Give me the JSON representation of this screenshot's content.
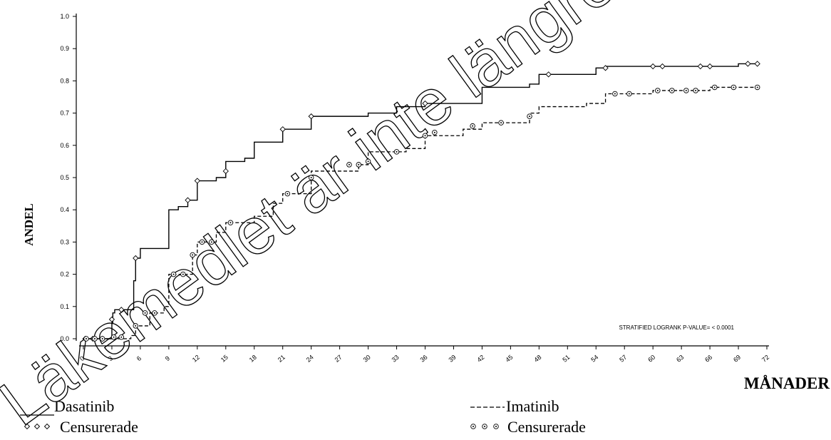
{
  "watermark": "Läkemedlet är inte längre godkänt",
  "chart_data": {
    "type": "line",
    "title": "",
    "xlabel": "MÅNADER",
    "ylabel": "ANDEL",
    "xlim": [
      0,
      72
    ],
    "ylim": [
      0,
      1.0
    ],
    "x_ticks": [
      "0",
      "3",
      "6",
      "9",
      "12",
      "15",
      "18",
      "21",
      "24",
      "27",
      "30",
      "33",
      "36",
      "39",
      "42",
      "45",
      "48",
      "51",
      "54",
      "57",
      "60",
      "63",
      "66",
      "69",
      "72"
    ],
    "y_ticks": [
      "0.0",
      "0.1",
      "0.2",
      "0.3",
      "0.4",
      "0.5",
      "0.6",
      "0.7",
      "0.8",
      "0.9",
      "1.0"
    ],
    "annotation": "STRATIFIED LOGRANK P-VALUE= < 0.0001",
    "legend_placement": "bottom",
    "series": [
      {
        "name": "Dasatinib",
        "style": "solid",
        "color": "#000000",
        "censor_label": "Censurerade",
        "censor_marker": "diamond",
        "x": [
          0,
          2.9,
          3.0,
          3.1,
          3.3,
          5.0,
          5.3,
          5.5,
          6.0,
          8.5,
          9.0,
          10.0,
          11.0,
          12.0,
          14.0,
          15.0,
          17.0,
          18.0,
          20.0,
          21.0,
          24.0,
          30.0,
          33.0,
          36.0,
          41.0,
          42.0,
          47.0,
          48.0,
          53.0,
          54.0,
          55.0,
          60.0,
          66.0,
          69.0,
          71.0
        ],
        "y": [
          0.0,
          0.0,
          0.05,
          0.08,
          0.09,
          0.09,
          0.18,
          0.25,
          0.28,
          0.28,
          0.4,
          0.41,
          0.43,
          0.49,
          0.5,
          0.55,
          0.56,
          0.61,
          0.61,
          0.65,
          0.69,
          0.7,
          0.72,
          0.73,
          0.73,
          0.78,
          0.79,
          0.82,
          0.82,
          0.84,
          0.845,
          0.845,
          0.845,
          0.853,
          0.853
        ],
        "censored_x": [
          0.2,
          1.0,
          2.0,
          3.0,
          4.0,
          5.5,
          11.0,
          12.0,
          15.0,
          21.0,
          24.0,
          36.0,
          49.0,
          55.0,
          60.0,
          61.0,
          65.0,
          66.0,
          70.0,
          71.0
        ],
        "censored_y": [
          0.0,
          0.0,
          0.0,
          0.06,
          0.09,
          0.25,
          0.43,
          0.49,
          0.52,
          0.65,
          0.69,
          0.73,
          0.82,
          0.84,
          0.845,
          0.845,
          0.845,
          0.845,
          0.853,
          0.853
        ]
      },
      {
        "name": "Imatinib",
        "style": "dashed",
        "color": "#000000",
        "censor_label": "Censurerade",
        "censor_marker": "circle",
        "x": [
          0,
          2.5,
          5.0,
          5.5,
          7.0,
          8.5,
          9.0,
          10.0,
          11.5,
          12.0,
          14.0,
          15.0,
          18.0,
          20.0,
          21.0,
          24.0,
          27.0,
          29.0,
          30.0,
          33.0,
          34.0,
          36.0,
          40.0,
          42.0,
          47.0,
          48.0,
          53.0,
          55.0,
          57.0,
          60.0,
          66.0,
          71.0
        ],
        "y": [
          0.0,
          0.0,
          0.01,
          0.04,
          0.08,
          0.1,
          0.2,
          0.2,
          0.26,
          0.3,
          0.33,
          0.36,
          0.38,
          0.42,
          0.45,
          0.52,
          0.52,
          0.54,
          0.58,
          0.58,
          0.59,
          0.63,
          0.65,
          0.67,
          0.7,
          0.72,
          0.73,
          0.76,
          0.76,
          0.77,
          0.78,
          0.78
        ],
        "censored_x": [
          0.3,
          1.2,
          2.0,
          3.2,
          4.0,
          5.5,
          6.5,
          7.5,
          9.5,
          10.5,
          11.5,
          12.5,
          13.5,
          15.5,
          21.5,
          24.0,
          28.0,
          29.0,
          30.0,
          33.0,
          36.0,
          37.0,
          41.0,
          44.0,
          47.0,
          56.0,
          57.5,
          60.5,
          62.0,
          63.5,
          64.5,
          66.5,
          68.5,
          71.0
        ],
        "censored_y": [
          0.0,
          0.0,
          0.0,
          0.005,
          0.005,
          0.04,
          0.08,
          0.08,
          0.2,
          0.2,
          0.26,
          0.3,
          0.3,
          0.36,
          0.45,
          0.5,
          0.54,
          0.54,
          0.55,
          0.58,
          0.63,
          0.64,
          0.66,
          0.67,
          0.69,
          0.76,
          0.76,
          0.77,
          0.77,
          0.77,
          0.77,
          0.78,
          0.78,
          0.78
        ]
      }
    ]
  }
}
